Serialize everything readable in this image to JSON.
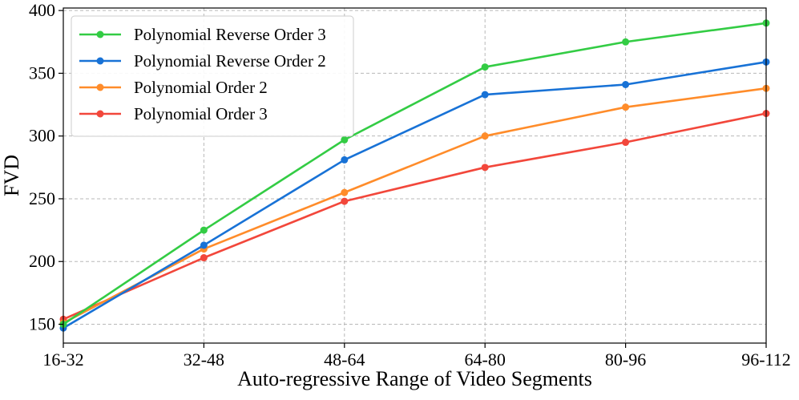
{
  "chart_data": {
    "type": "line",
    "title": "",
    "xlabel": "Auto-regressive Range of Video Segments",
    "ylabel": "FVD",
    "categories": [
      "16-32",
      "32-48",
      "48-64",
      "64-80",
      "80-96",
      "96-112"
    ],
    "yticks": [
      150,
      200,
      250,
      300,
      350,
      400
    ],
    "ylim": [
      135,
      402
    ],
    "grid": true,
    "legend_position": "top-left",
    "series": [
      {
        "name": "Polynomial Reverse Order 3",
        "color": "#33cc44",
        "values": [
          150,
          225,
          297,
          355,
          375,
          390
        ]
      },
      {
        "name": "Polynomial Reverse Order 2",
        "color": "#1872d6",
        "values": [
          147,
          213,
          281,
          333,
          341,
          359
        ]
      },
      {
        "name": "Polynomial Order 2",
        "color": "#ff8c2a",
        "values": [
          151,
          210,
          255,
          300,
          323,
          338
        ]
      },
      {
        "name": "Polynomial Order 3",
        "color": "#f2473b",
        "values": [
          154,
          203,
          248,
          275,
          295,
          318
        ]
      }
    ]
  }
}
